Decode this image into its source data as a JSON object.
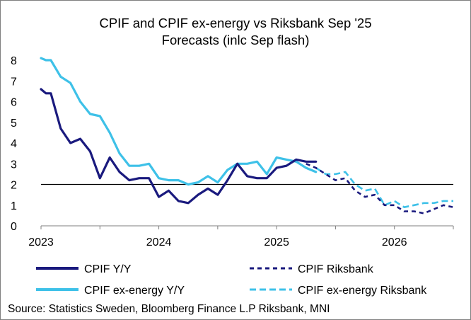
{
  "chart_data": {
    "type": "line",
    "title": "CPIF and CPIF ex-energy vs Riksbank Sep '25",
    "subtitle": "Forecasts (inlc Sep flash)",
    "xlabel": "",
    "ylabel": "",
    "xlim": [
      0,
      42
    ],
    "ylim": [
      0,
      8
    ],
    "grid": false,
    "reference_line": 2,
    "x_ticks": [
      {
        "label": "2023",
        "value": 0
      },
      {
        "label": "2024",
        "value": 12
      },
      {
        "label": "2025",
        "value": 24
      },
      {
        "label": "2026",
        "value": 36
      }
    ],
    "y_ticks": [
      0,
      1,
      2,
      3,
      4,
      5,
      6,
      7,
      8
    ],
    "legend_position": "bottom",
    "series": [
      {
        "name": "CPIF Y/Y",
        "color": "#1a1a7e",
        "style": "solid",
        "x": [
          0,
          0.5,
          1,
          2,
          3,
          4,
          5,
          6,
          7,
          8,
          9,
          10,
          11,
          12,
          13,
          14,
          15,
          16,
          17,
          18,
          19,
          20,
          21,
          22,
          23,
          24,
          25,
          26,
          27,
          28
        ],
        "values": [
          6.6,
          6.4,
          6.4,
          4.7,
          4.0,
          4.2,
          3.6,
          2.3,
          3.3,
          2.6,
          2.2,
          2.3,
          2.3,
          1.4,
          1.7,
          1.2,
          1.1,
          1.5,
          1.8,
          1.5,
          2.2,
          3.0,
          2.4,
          2.3,
          2.3,
          2.8,
          2.9,
          3.2,
          3.1,
          3.1
        ]
      },
      {
        "name": "CPIF Riksbank",
        "color": "#1a1a7e",
        "style": "dashed",
        "x": [
          27,
          28,
          29,
          30,
          31,
          32,
          33,
          34,
          35,
          36,
          37,
          38,
          39,
          40,
          41,
          42
        ],
        "values": [
          3.0,
          2.8,
          2.5,
          2.2,
          2.3,
          1.7,
          1.4,
          1.5,
          1.0,
          1.0,
          0.7,
          0.7,
          0.6,
          0.8,
          1.0,
          0.9
        ]
      },
      {
        "name": "CPIF ex-energy Y/Y",
        "color": "#3ec1e8",
        "style": "solid",
        "x": [
          0,
          0.5,
          1,
          2,
          3,
          4,
          5,
          6,
          7,
          8,
          9,
          10,
          11,
          12,
          13,
          14,
          15,
          16,
          17,
          18,
          19,
          20,
          21,
          22,
          23,
          24,
          25,
          26,
          27,
          28
        ],
        "values": [
          8.1,
          8.0,
          8.0,
          7.2,
          6.9,
          6.0,
          5.4,
          5.3,
          4.5,
          3.5,
          2.9,
          2.9,
          3.0,
          2.3,
          2.2,
          2.2,
          2.0,
          2.1,
          2.4,
          2.1,
          2.7,
          3.0,
          3.0,
          3.1,
          2.5,
          3.3,
          3.2,
          3.1,
          2.8,
          2.6
        ]
      },
      {
        "name": "CPIF ex-energy Riksbank",
        "color": "#3ec1e8",
        "style": "dashed",
        "x": [
          28,
          29,
          30,
          31,
          32,
          33,
          34,
          35,
          36,
          37,
          38,
          39,
          40,
          41,
          42
        ],
        "values": [
          2.8,
          2.5,
          2.5,
          2.6,
          2.0,
          1.7,
          1.8,
          1.0,
          1.2,
          0.9,
          1.0,
          1.1,
          1.1,
          1.2,
          1.2
        ]
      }
    ],
    "source": "Source: Statistics Sweden, Bloomberg Finance L.P Riksbank, MNI"
  }
}
